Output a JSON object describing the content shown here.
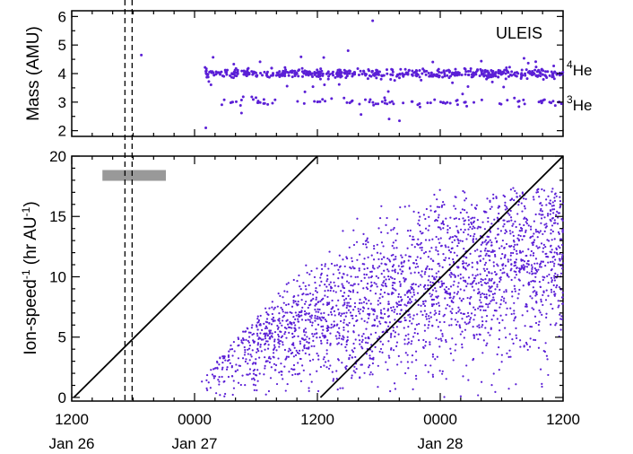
{
  "chart_data": [
    {
      "type": "scatter",
      "panel": "top",
      "ylabel": "Mass (AMU)",
      "ylim": [
        1.8,
        6.2
      ],
      "yticks": [
        2,
        3,
        4,
        5,
        6
      ],
      "xlim_hours": [
        0,
        48
      ],
      "instrument_label": "ULEIS",
      "species_labels": [
        {
          "sup": "4",
          "text": "He",
          "mass": 4.0
        },
        {
          "sup": "3",
          "text": "He",
          "mass": 3.0
        }
      ],
      "point_color": "#5b1fd6",
      "series": [
        {
          "mass": 4.0,
          "x_range_hours": [
            13,
            48
          ],
          "spread": 0.08,
          "count": 520
        },
        {
          "mass": 3.0,
          "x_range_hours": [
            14,
            48
          ],
          "spread": 0.06,
          "count": 90
        },
        {
          "mass": "scattered",
          "x_range_hours": [
            13,
            48
          ],
          "count": 40
        }
      ],
      "outliers": [
        {
          "t": 6.8,
          "mass": 4.65
        },
        {
          "t": 13.1,
          "mass": 2.1
        },
        {
          "t": 29.4,
          "mass": 5.85
        },
        {
          "t": 27.0,
          "mass": 4.8
        }
      ]
    },
    {
      "type": "scatter",
      "panel": "bottom",
      "ylabel": "Ion-speed",
      "ylabel_sup1": "-1",
      "ylabel_paren": " (hr AU",
      "ylabel_sup2": "-1",
      "ylabel_close": ")",
      "ylim": [
        -0.3,
        20
      ],
      "yticks": [
        0,
        5,
        10,
        15,
        20
      ],
      "xticks": [
        {
          "hour": 0,
          "time": "1200",
          "date": "Jan 26"
        },
        {
          "hour": 12,
          "time": "0000",
          "date": "Jan 27"
        },
        {
          "hour": 24,
          "time": "1200",
          "date": ""
        },
        {
          "hour": 36,
          "time": "0000",
          "date": "Jan 28"
        },
        {
          "hour": 48,
          "time": "1200",
          "date": ""
        }
      ],
      "xlim_hours": [
        0,
        48
      ],
      "point_color": "#5b1fd6",
      "reference_lines": [
        {
          "x0_hours": 0.2,
          "y0": 0,
          "x1_hours": 24,
          "y1": 20
        },
        {
          "x0_hours": 24.3,
          "y0": 0,
          "x1_hours": 48,
          "y1": 20
        }
      ],
      "vertical_dashed_hours": [
        5.2,
        5.9
      ],
      "shaded_bar": {
        "x_range_hours": [
          3,
          9.2
        ],
        "y": 18.4,
        "color": "#999999"
      },
      "cloud": {
        "x_range_hours": [
          10,
          48
        ],
        "peak_hour": 35,
        "peak_y": 17.5,
        "count": 2400
      }
    }
  ]
}
